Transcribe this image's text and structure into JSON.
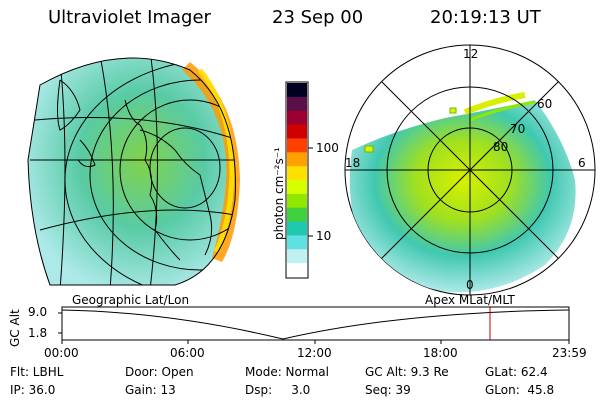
{
  "header": {
    "instrument": "Ultraviolet Imager",
    "date": "23 Sep 00",
    "time": "20:19:13 UT"
  },
  "colorbar": {
    "unit_label": "photon cm⁻²s⁻¹",
    "ticks": [
      "100",
      "10"
    ],
    "colors": [
      "#000020",
      "#5a0f4a",
      "#9a0030",
      "#d00000",
      "#ff4000",
      "#ffa000",
      "#ffe000",
      "#d8ff00",
      "#90e800",
      "#40d040",
      "#20c8b0",
      "#60e0e0",
      "#c0f0f0",
      "#ffffff"
    ]
  },
  "left_panel": {
    "label": "Geographic Lat/Lon"
  },
  "right_panel": {
    "label": "Apex MLat/MLT",
    "mlt_labels": [
      "12",
      "18",
      "6",
      "0"
    ],
    "mlat_labels": [
      "60",
      "70",
      "80"
    ]
  },
  "altitude_plot": {
    "ylabel": "GC Alt",
    "yticks": [
      "9.0",
      "1.8"
    ],
    "xticks": [
      "00:00",
      "06:00",
      "12:00",
      "18:00",
      "23:59"
    ],
    "marker_color": "#c00000"
  },
  "info": {
    "flt": "Flt: LBHL",
    "door": "Door: Open",
    "mode": "Mode: Normal",
    "gc_alt": "GC Alt: 9.3 Re",
    "glat": "GLat: 62.4",
    "ip": "IP: 36.0",
    "gain": "Gain: 13",
    "dsp": "Dsp:     3.0",
    "seq": "Seq: 39",
    "glon": "GLon:  45.8"
  }
}
